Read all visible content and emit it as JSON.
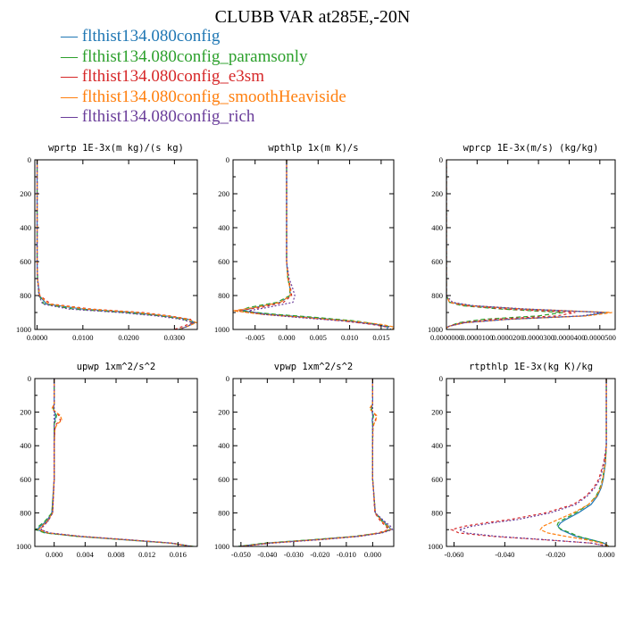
{
  "title": "CLUBB VAR at285E,-20N",
  "legend": [
    {
      "label": "flthist134.080config",
      "color": "#1f77b4"
    },
    {
      "label": "flthist134.080config_paramsonly",
      "color": "#2ca02c"
    },
    {
      "label": "flthist134.080config_e3sm",
      "color": "#d62728"
    },
    {
      "label": "flthist134.080config_smoothHeaviside",
      "color": "#ff7f0e"
    },
    {
      "label": "flthist134.080config_rich",
      "color": "#6a3d9a"
    }
  ],
  "chart_data": [
    {
      "type": "line",
      "title": "wprtp  1E-3x(m kg)/(s kg)",
      "xlim": [
        -0.0005,
        0.035
      ],
      "ylim": [
        0,
        1000
      ],
      "y_inverted": true,
      "xticks": [
        "0.0000",
        "0.0100",
        "0.0200",
        "0.0300"
      ],
      "xtick_values": [
        0,
        0.01,
        0.02,
        0.03
      ],
      "yticks": [
        "0",
        "200",
        "400",
        "600",
        "800",
        "1000"
      ],
      "y": [
        0,
        100,
        200,
        300,
        400,
        500,
        600,
        700,
        800,
        850,
        880,
        900,
        920,
        940,
        960,
        980,
        1000
      ],
      "series": [
        {
          "name": "flthist134.080config",
          "values": [
            0,
            0,
            0,
            0,
            0,
            0,
            0,
            0.0001,
            0.0005,
            0.002,
            0.01,
            0.021,
            0.028,
            0.033,
            0.0345,
            0.033,
            0.031
          ]
        },
        {
          "name": "flthist134.080config_paramsonly",
          "values": [
            0,
            0,
            0,
            0,
            0,
            0,
            0,
            0.0001,
            0.0004,
            0.0015,
            0.008,
            0.019,
            0.027,
            0.032,
            0.034,
            0.033,
            0.031
          ]
        },
        {
          "name": "flthist134.080config_e3sm",
          "values": [
            0,
            0,
            0,
            0,
            0,
            0,
            0,
            0.0001,
            0.0006,
            0.003,
            0.012,
            0.023,
            0.029,
            0.0335,
            0.034,
            0.032,
            0.03
          ]
        },
        {
          "name": "flthist134.080config_smoothHeaviside",
          "values": [
            0,
            0,
            0,
            0,
            0,
            0,
            0,
            0.0001,
            0.0005,
            0.0025,
            0.011,
            0.022,
            0.0285,
            0.033,
            0.0348,
            0.033,
            0.031
          ]
        },
        {
          "name": "flthist134.080config_rich",
          "values": [
            0,
            0,
            0,
            0,
            0,
            0,
            0,
            0.0001,
            0.0004,
            0.0012,
            0.007,
            0.018,
            0.026,
            0.0315,
            0.034,
            0.033,
            0.031
          ]
        }
      ]
    },
    {
      "type": "line",
      "title": "wpthlp  1x(m K)/s",
      "xlim": [
        -0.0085,
        0.017
      ],
      "ylim": [
        0,
        1000
      ],
      "y_inverted": true,
      "xticks": [
        "-0.005",
        "0.000",
        "0.005",
        "0.010",
        "0.015"
      ],
      "xtick_values": [
        -0.005,
        0,
        0.005,
        0.01,
        0.015
      ],
      "yticks": [
        "0",
        "200",
        "400",
        "600",
        "800",
        "1000"
      ],
      "y": [
        0,
        100,
        200,
        300,
        400,
        500,
        600,
        700,
        750,
        800,
        840,
        870,
        890,
        910,
        930,
        950,
        970,
        985,
        1000
      ],
      "series": [
        {
          "name": "flthist134.080config",
          "values": [
            0,
            0,
            0,
            0,
            0,
            0,
            0,
            0.0002,
            0.0005,
            0.0006,
            -0.001,
            -0.005,
            -0.007,
            -0.003,
            0.004,
            0.01,
            0.014,
            0.016,
            0.016
          ]
        },
        {
          "name": "flthist134.080config_paramsonly",
          "values": [
            0,
            0,
            0,
            0,
            0,
            0,
            0,
            0.0002,
            0.0005,
            0.0005,
            -0.0015,
            -0.006,
            -0.0075,
            -0.002,
            0.005,
            0.011,
            0.0145,
            0.0165,
            0.0165
          ]
        },
        {
          "name": "flthist134.080config_e3sm",
          "values": [
            0,
            0,
            0,
            0,
            0,
            0,
            0,
            0.0003,
            0.0006,
            0.0008,
            -0.0005,
            -0.004,
            -0.008,
            -0.004,
            0.003,
            0.009,
            0.0135,
            0.0158,
            0.016
          ]
        },
        {
          "name": "flthist134.080config_smoothHeaviside",
          "values": [
            0,
            0,
            0,
            0,
            0,
            0,
            0,
            0.0002,
            0.0005,
            0.0006,
            -0.001,
            -0.005,
            -0.0085,
            -0.004,
            0.003,
            0.01,
            0.015,
            0.017,
            0.0168
          ]
        },
        {
          "name": "flthist134.080config_rich",
          "values": [
            0,
            0,
            0,
            0,
            0,
            0,
            0,
            0.0004,
            0.0009,
            0.0013,
            0.001,
            -0.003,
            -0.006,
            -0.004,
            0.002,
            0.009,
            0.014,
            0.0162,
            0.0165
          ]
        }
      ]
    },
    {
      "type": "line",
      "title": "wprcp  1E-3x(m/s) (kg/kg)",
      "xlim": [
        0,
        5.5e-05
      ],
      "ylim": [
        0,
        1000
      ],
      "y_inverted": true,
      "xticks": [
        "0.0000000",
        "0.0000100",
        "0.0000200",
        "0.0000300",
        "0.0000400",
        "0.0000500"
      ],
      "xtick_values": [
        0,
        1e-05,
        2e-05,
        3e-05,
        4e-05,
        5e-05
      ],
      "yticks": [
        "0",
        "200",
        "400",
        "600",
        "800",
        "1000"
      ],
      "y": [
        0,
        100,
        200,
        300,
        400,
        500,
        600,
        700,
        800,
        840,
        860,
        880,
        900,
        920,
        940,
        960,
        980,
        990,
        1000
      ],
      "series": [
        {
          "name": "flthist134.080config",
          "values": [
            0,
            0,
            0,
            0,
            0,
            0,
            0,
            0,
            0,
            1e-06,
            8e-06,
            2.5e-05,
            5.2e-05,
            4.5e-05,
            2e-05,
            6e-06,
            1e-06,
            0,
            0
          ]
        },
        {
          "name": "flthist134.080config_paramsonly",
          "values": [
            0,
            0,
            0,
            0,
            0,
            0,
            0,
            0,
            0,
            1e-06,
            5e-06,
            1.8e-05,
            3.8e-05,
            3e-05,
            1.2e-05,
            4e-06,
            1e-06,
            0,
            0
          ]
        },
        {
          "name": "flthist134.080config_e3sm",
          "values": [
            0,
            0,
            0,
            0,
            0,
            0,
            0,
            0,
            0,
            1e-06,
            6e-06,
            2e-05,
            4.2e-05,
            3.6e-05,
            1.5e-05,
            5e-06,
            1e-06,
            0,
            0
          ]
        },
        {
          "name": "flthist134.080config_smoothHeaviside",
          "values": [
            0,
            0,
            0,
            0,
            0,
            0,
            0,
            0,
            0,
            1e-06,
            8e-06,
            2.6e-05,
            5.4e-05,
            4.6e-05,
            2e-05,
            6e-06,
            1e-06,
            0,
            0
          ]
        },
        {
          "name": "flthist134.080config_rich",
          "values": [
            0,
            0,
            0,
            0,
            0,
            0,
            0,
            0,
            0,
            2e-06,
            9e-06,
            2.7e-05,
            5.1e-05,
            4.4e-05,
            2e-05,
            6e-06,
            1e-06,
            0,
            0
          ]
        }
      ]
    },
    {
      "type": "line",
      "title": "upwp  1xm^2/s^2",
      "xlim": [
        -0.0025,
        0.0185
      ],
      "ylim": [
        0,
        1000
      ],
      "y_inverted": true,
      "xticks": [
        "0.000",
        "0.004",
        "0.008",
        "0.012",
        "0.016"
      ],
      "xtick_values": [
        0,
        0.004,
        0.008,
        0.012,
        0.016
      ],
      "yticks": [
        "0",
        "200",
        "400",
        "600",
        "800",
        "1000"
      ],
      "y": [
        0,
        100,
        150,
        180,
        220,
        250,
        270,
        300,
        400,
        600,
        800,
        850,
        880,
        900,
        920,
        940,
        960,
        980,
        1000
      ],
      "series": [
        {
          "name": "flthist134.080config",
          "values": [
            0,
            0,
            0,
            -0.0001,
            0.0002,
            0.0001,
            0,
            0,
            0,
            0,
            -0.0003,
            -0.001,
            -0.0018,
            -0.0022,
            -0.001,
            0.003,
            0.009,
            0.015,
            0.0178
          ]
        },
        {
          "name": "flthist134.080config_paramsonly",
          "values": [
            0,
            0,
            0,
            -0.0001,
            0.0003,
            0.0002,
            0,
            0,
            0,
            0,
            -0.0003,
            -0.0012,
            -0.002,
            -0.0024,
            -0.0012,
            0.003,
            0.009,
            0.015,
            0.018
          ]
        },
        {
          "name": "flthist134.080config_e3sm",
          "values": [
            0,
            0,
            0,
            -0.0002,
            0.0006,
            0.0008,
            0.0003,
            0.0001,
            0,
            0,
            -0.0002,
            -0.0008,
            -0.0015,
            -0.0018,
            -0.0006,
            0.0035,
            0.0095,
            0.0152,
            0.0178
          ]
        },
        {
          "name": "flthist134.080config_smoothHeaviside",
          "values": [
            0,
            0,
            0,
            -0.0003,
            0.0008,
            0.001,
            0.0004,
            0.0001,
            0,
            0,
            -0.0002,
            -0.0009,
            -0.0016,
            -0.002,
            -0.0008,
            0.0032,
            0.0092,
            0.015,
            0.0176
          ]
        },
        {
          "name": "flthist134.080config_rich",
          "values": [
            0,
            0,
            0,
            0,
            0,
            0,
            0,
            0,
            0,
            0,
            -0.0002,
            -0.0008,
            -0.0014,
            -0.0017,
            -0.0005,
            0.0035,
            0.0095,
            0.0152,
            0.0177
          ]
        }
      ]
    },
    {
      "type": "line",
      "title": "vpwp  1xm^2/s^2",
      "xlim": [
        -0.053,
        0.008
      ],
      "ylim": [
        0,
        1000
      ],
      "y_inverted": true,
      "xticks": [
        "-0.050",
        "-0.040",
        "-0.030",
        "-0.020",
        "-0.010",
        "0.000"
      ],
      "xtick_values": [
        -0.05,
        -0.04,
        -0.03,
        -0.02,
        -0.01,
        0
      ],
      "yticks": [
        "0",
        "200",
        "400",
        "600",
        "800",
        "1000"
      ],
      "y": [
        0,
        100,
        150,
        180,
        220,
        250,
        270,
        300,
        400,
        600,
        800,
        850,
        880,
        900,
        920,
        940,
        960,
        980,
        1000
      ],
      "series": [
        {
          "name": "flthist134.080config",
          "values": [
            0,
            0,
            0,
            -0.0005,
            0.0001,
            -0.0002,
            0,
            0,
            0,
            0,
            0.001,
            0.004,
            0.006,
            0.007,
            0.003,
            -0.006,
            -0.022,
            -0.04,
            -0.051
          ]
        },
        {
          "name": "flthist134.080config_paramsonly",
          "values": [
            0,
            0,
            0,
            -0.0004,
            0.0003,
            0.0001,
            0,
            0,
            0,
            0,
            0.001,
            0.0035,
            0.0055,
            0.0065,
            0.0025,
            -0.007,
            -0.023,
            -0.041,
            -0.051
          ]
        },
        {
          "name": "flthist134.080config_e3sm",
          "values": [
            0,
            0,
            0,
            -0.001,
            0.0012,
            0.001,
            0.0004,
            0.0001,
            0,
            0,
            0.0008,
            0.003,
            0.005,
            0.006,
            0.002,
            -0.006,
            -0.021,
            -0.039,
            -0.05
          ]
        },
        {
          "name": "flthist134.080config_smoothHeaviside",
          "values": [
            0,
            0,
            0,
            -0.0012,
            0.0015,
            0.0012,
            0.0005,
            0.0001,
            0,
            0,
            0.001,
            0.0035,
            0.0058,
            0.0068,
            0.0028,
            -0.0055,
            -0.021,
            -0.039,
            -0.05
          ]
        },
        {
          "name": "flthist134.080config_rich",
          "values": [
            0,
            0,
            0,
            0,
            0,
            0,
            0,
            0,
            0,
            0,
            0.001,
            0.0045,
            0.0068,
            0.0075,
            0.0035,
            -0.005,
            -0.02,
            -0.038,
            -0.05
          ]
        }
      ]
    },
    {
      "type": "line",
      "title": "rtpthlp  1E-3x(kg K)/kg",
      "xlim": [
        -0.063,
        0.0035
      ],
      "ylim": [
        0,
        1000
      ],
      "y_inverted": true,
      "xticks": [
        "-0.060",
        "-0.040",
        "-0.020",
        "0.000"
      ],
      "xtick_values": [
        -0.06,
        -0.04,
        -0.02,
        0
      ],
      "yticks": [
        "0",
        "200",
        "400",
        "600",
        "800",
        "1000"
      ],
      "y": [
        0,
        200,
        400,
        500,
        600,
        650,
        700,
        750,
        800,
        840,
        860,
        880,
        900,
        920,
        940,
        960,
        980,
        1000
      ],
      "series": [
        {
          "name": "flthist134.080config",
          "values": [
            0,
            0,
            0,
            -0.0003,
            -0.0012,
            -0.002,
            -0.0035,
            -0.006,
            -0.011,
            -0.016,
            -0.018,
            -0.019,
            -0.018,
            -0.015,
            -0.012,
            -0.006,
            -0.001,
            0.001
          ]
        },
        {
          "name": "flthist134.080config_paramsonly",
          "values": [
            0,
            0,
            0,
            -0.0004,
            -0.0015,
            -0.0025,
            -0.004,
            -0.007,
            -0.012,
            -0.017,
            -0.019,
            -0.0195,
            -0.0175,
            -0.014,
            -0.011,
            -0.006,
            -0.001,
            0.001
          ]
        },
        {
          "name": "flthist134.080config_e3sm",
          "values": [
            0,
            0,
            0,
            -0.001,
            -0.003,
            -0.005,
            -0.008,
            -0.013,
            -0.024,
            -0.038,
            -0.048,
            -0.056,
            -0.061,
            -0.058,
            -0.045,
            -0.025,
            -0.006,
            0.001
          ]
        },
        {
          "name": "flthist134.080config_smoothHeaviside",
          "values": [
            0,
            0,
            0,
            -0.0004,
            -0.0014,
            -0.0022,
            -0.0038,
            -0.007,
            -0.013,
            -0.019,
            -0.022,
            -0.025,
            -0.026,
            -0.023,
            -0.016,
            -0.008,
            -0.002,
            0.001
          ]
        },
        {
          "name": "flthist134.080config_rich",
          "values": [
            0,
            0,
            0,
            -0.0008,
            -0.0025,
            -0.0045,
            -0.0075,
            -0.012,
            -0.022,
            -0.035,
            -0.045,
            -0.053,
            -0.058,
            -0.055,
            -0.043,
            -0.024,
            -0.006,
            0.001
          ]
        }
      ]
    }
  ]
}
